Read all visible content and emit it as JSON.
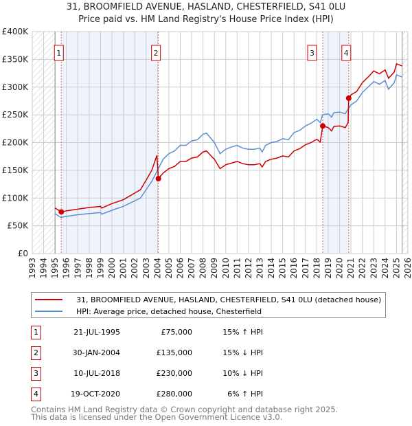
{
  "title": "31, BROOMFIELD AVENUE, HASLAND, CHESTERFIELD, S41 0LU",
  "subtitle": "Price paid vs. HM Land Registry's House Price Index (HPI)",
  "chart_data": {
    "type": "line",
    "title": "31, BROOMFIELD AVENUE, HASLAND, CHESTERFIELD, S41 0LU",
    "subtitle": "Price paid vs. HM Land Registry's House Price Index (HPI)",
    "xlim": [
      1993,
      2026
    ],
    "ylim": [
      0,
      400000
    ],
    "x_ticks": [
      "1993",
      "1994",
      "1995",
      "1996",
      "1997",
      "1998",
      "1999",
      "2000",
      "2001",
      "2002",
      "2003",
      "2004",
      "2005",
      "2006",
      "2007",
      "2008",
      "2009",
      "2010",
      "2011",
      "2012",
      "2013",
      "2014",
      "2015",
      "2016",
      "2017",
      "2018",
      "2019",
      "2020",
      "2021",
      "2022",
      "2023",
      "2024",
      "2025",
      "2026"
    ],
    "y_ticks": [
      {
        "v": 0,
        "label": "£0"
      },
      {
        "v": 50000,
        "label": "£50K"
      },
      {
        "v": 100000,
        "label": "£100K"
      },
      {
        "v": 150000,
        "label": "£150K"
      },
      {
        "v": 200000,
        "label": "£200K"
      },
      {
        "v": 250000,
        "label": "£250K"
      },
      {
        "v": 300000,
        "label": "£300K"
      },
      {
        "v": 350000,
        "label": "£350K"
      },
      {
        "v": 400000,
        "label": "£400K"
      }
    ],
    "grid": true,
    "hatched_ranges": [
      [
        1993,
        1995
      ],
      [
        2025.5,
        2026
      ]
    ],
    "shaded_ranges": [
      [
        1995.55,
        2004.08
      ],
      [
        2018.52,
        2020.8
      ]
    ],
    "series": [
      {
        "name": "31, BROOMFIELD AVENUE, HASLAND, CHESTERFIELD, S41 0LU (detached house)",
        "color": "#cc0000",
        "x": [
          1995.0,
          1995.55,
          1996,
          1997,
          1998,
          1999,
          1999.1,
          2000,
          2001,
          2001.5,
          2002,
          2002.5,
          2003,
          2003.5,
          2003.95,
          2004.08,
          2004.5,
          2005,
          2005.5,
          2006,
          2006.5,
          2007,
          2007.5,
          2008,
          2008.3,
          2008.8,
          2009,
          2009.5,
          2010,
          2010.5,
          2011,
          2011.5,
          2012,
          2012.5,
          2013,
          2013.2,
          2013.5,
          2014,
          2014.5,
          2015,
          2015.5,
          2016,
          2016.5,
          2017,
          2017.5,
          2018,
          2018.3,
          2018.52,
          2019,
          2019.3,
          2019.5,
          2020,
          2020.5,
          2020.75,
          2020.8,
          2021,
          2021.5,
          2022,
          2022.5,
          2023,
          2023.5,
          2024,
          2024.3,
          2024.8,
          2025,
          2025.5
        ],
        "y": [
          82000,
          75000,
          77000,
          80000,
          83000,
          85000,
          82000,
          90000,
          97000,
          103000,
          109000,
          115000,
          132000,
          150000,
          177000,
          135000,
          145000,
          153000,
          157000,
          166000,
          166000,
          172000,
          174000,
          183000,
          185000,
          174000,
          170000,
          153000,
          160000,
          163000,
          166000,
          162000,
          160000,
          160000,
          162000,
          156000,
          166000,
          170000,
          172000,
          176000,
          174000,
          185000,
          189000,
          196000,
          200000,
          206000,
          201000,
          230000,
          227000,
          221000,
          229000,
          230000,
          227000,
          236000,
          280000,
          286000,
          292000,
          308000,
          318000,
          329000,
          324000,
          331000,
          316000,
          327000,
          342000,
          338000
        ]
      },
      {
        "name": "HPI: Average price, detached house, Chesterfield",
        "color": "#5b8fd0",
        "x": [
          1995.0,
          1995.5,
          1996,
          1997,
          1998,
          1999,
          1999.1,
          2000,
          2001,
          2001.5,
          2002,
          2002.5,
          2003,
          2003.5,
          2004,
          2004.5,
          2005,
          2005.5,
          2006,
          2006.5,
          2007,
          2007.5,
          2008,
          2008.3,
          2008.8,
          2009,
          2009.5,
          2010,
          2010.5,
          2011,
          2011.5,
          2012,
          2012.5,
          2013,
          2013.2,
          2013.5,
          2014,
          2014.5,
          2015,
          2015.5,
          2016,
          2016.5,
          2017,
          2017.5,
          2018,
          2018.3,
          2018.5,
          2019,
          2019.3,
          2019.5,
          2020,
          2020.5,
          2020.8,
          2021,
          2021.5,
          2022,
          2022.5,
          2023,
          2023.5,
          2024,
          2024.3,
          2024.8,
          2025,
          2025.5
        ],
        "y": [
          72000,
          65000,
          67000,
          70000,
          72000,
          74000,
          71000,
          78000,
          85000,
          90000,
          95000,
          100000,
          115000,
          130000,
          150000,
          170000,
          180000,
          185000,
          195000,
          195000,
          203000,
          205000,
          215000,
          217000,
          205000,
          200000,
          180000,
          188000,
          192000,
          195000,
          190000,
          188000,
          188000,
          190000,
          183000,
          195000,
          200000,
          202000,
          207000,
          205000,
          218000,
          222000,
          230000,
          235000,
          242000,
          236000,
          250000,
          252000,
          246000,
          254000,
          255000,
          252000,
          262000,
          268000,
          275000,
          290000,
          300000,
          310000,
          305000,
          312000,
          296000,
          308000,
          322000,
          318000
        ]
      }
    ],
    "annotations": [
      {
        "label": "1",
        "x": 1995.55,
        "y": 75000
      },
      {
        "label": "2",
        "x": 2004.08,
        "y": 135000
      },
      {
        "label": "3",
        "x": 2018.52,
        "y": 230000
      },
      {
        "label": "4",
        "x": 2020.8,
        "y": 280000
      }
    ],
    "legend_position": "below"
  },
  "legend": {
    "property": "31, BROOMFIELD AVENUE, HASLAND, CHESTERFIELD, S41 0LU (detached house)",
    "hpi": "HPI: Average price, detached house, Chesterfield"
  },
  "sales": [
    {
      "num": "1",
      "date": "21-JUL-1995",
      "price": "£75,000",
      "hpi": "15% ↑ HPI"
    },
    {
      "num": "2",
      "date": "30-JAN-2004",
      "price": "£135,000",
      "hpi": "15% ↓ HPI"
    },
    {
      "num": "3",
      "date": "10-JUL-2018",
      "price": "£230,000",
      "hpi": "10% ↓ HPI"
    },
    {
      "num": "4",
      "date": "19-OCT-2020",
      "price": "£280,000",
      "hpi": "6% ↑ HPI"
    }
  ],
  "footer": [
    "Contains HM Land Registry data © Crown copyright and database right 2025.",
    "This data is licensed under the Open Government Licence v3.0."
  ]
}
